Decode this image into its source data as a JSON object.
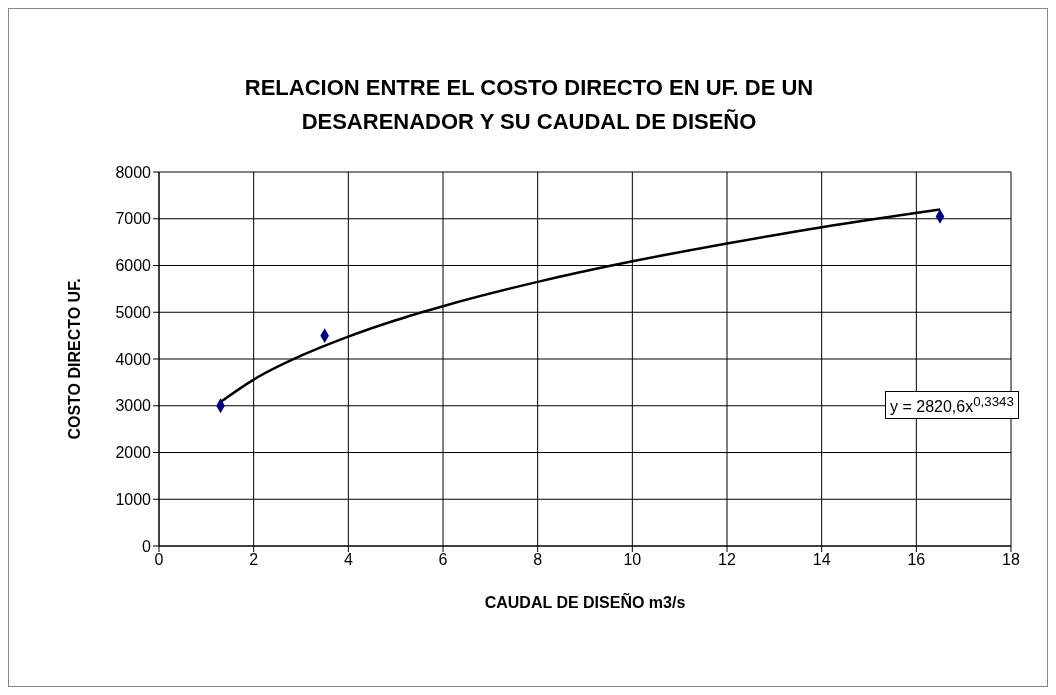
{
  "chart_data": {
    "type": "scatter",
    "title": "RELACION ENTRE EL COSTO DIRECTO EN UF. DE UN DESARENADOR Y SU CAUDAL DE DISEÑO",
    "xlabel": "CAUDAL DE DISEÑO m3/s",
    "ylabel": "COSTO DIRECTO UF.",
    "series": [
      {
        "color": "#000080",
        "marker": "diamond",
        "x": [
          1.3,
          3.5,
          16.5
        ],
        "values": [
          3000,
          4500,
          7050
        ]
      },
      {
        "type": "line",
        "color": "#000000",
        "marker": "none",
        "x": [
          1.3,
          2,
          3,
          4,
          5,
          6,
          8,
          10,
          12,
          14,
          16.5
        ],
        "values": [
          3080,
          3560,
          4070,
          4480,
          4830,
          5130,
          5650,
          6090,
          6470,
          6820,
          7200
        ]
      }
    ],
    "annotations": [
      "y = 2820,6x$^{0,3343}$"
    ],
    "xlim": [
      0,
      18
    ],
    "xticks": [
      0,
      2,
      4,
      6,
      8,
      10,
      12,
      14,
      16,
      18
    ],
    "ylim": [
      0,
      8000
    ],
    "yticks": [
      0,
      1000,
      2000,
      3000,
      4000,
      5000,
      6000,
      7000,
      8000
    ],
    "grid": true,
    "legend": false
  }
}
